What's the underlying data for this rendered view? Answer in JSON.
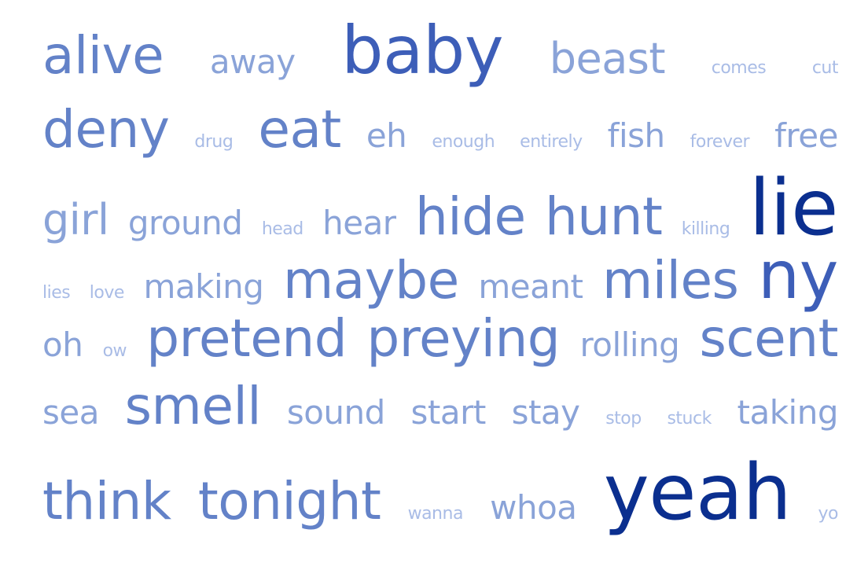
{
  "colors": {
    "darkest": "#0b2f8f",
    "dark": "#3d5eb8",
    "mid": "#6382c8",
    "light": "#8aa3d8",
    "lightest": "#a9bce6"
  },
  "rows": [
    [
      {
        "text": "alive",
        "weight": 5,
        "tone": "mid"
      },
      {
        "text": "away",
        "weight": 3,
        "tone": "light"
      },
      {
        "text": "baby",
        "weight": 6,
        "tone": "dark"
      },
      {
        "text": "beast",
        "weight": 4,
        "tone": "light"
      },
      {
        "text": "comes",
        "weight": 1,
        "tone": "lightest"
      },
      {
        "text": "cut",
        "weight": 1,
        "tone": "lightest"
      }
    ],
    [
      {
        "text": "deny",
        "weight": 5,
        "tone": "mid"
      },
      {
        "text": "drug",
        "weight": 1,
        "tone": "lightest"
      },
      {
        "text": "eat",
        "weight": 5,
        "tone": "mid"
      },
      {
        "text": "eh",
        "weight": 3,
        "tone": "light"
      },
      {
        "text": "enough",
        "weight": 1,
        "tone": "lightest"
      },
      {
        "text": "entirely",
        "weight": 1,
        "tone": "lightest"
      },
      {
        "text": "fish",
        "weight": 3,
        "tone": "light"
      },
      {
        "text": "forever",
        "weight": 1,
        "tone": "lightest"
      },
      {
        "text": "free",
        "weight": 3,
        "tone": "light"
      }
    ],
    [
      {
        "text": "girl",
        "weight": 4,
        "tone": "light"
      },
      {
        "text": "ground",
        "weight": 3,
        "tone": "light"
      },
      {
        "text": "head",
        "weight": 1,
        "tone": "lightest"
      },
      {
        "text": "hear",
        "weight": 3,
        "tone": "light"
      },
      {
        "text": "hide",
        "weight": 5,
        "tone": "mid"
      },
      {
        "text": "hunt",
        "weight": 5,
        "tone": "mid"
      },
      {
        "text": "killing",
        "weight": 1,
        "tone": "lightest"
      },
      {
        "text": "lie",
        "weight": 7,
        "tone": "darkest"
      }
    ],
    [
      {
        "text": "lies",
        "weight": 1,
        "tone": "lightest"
      },
      {
        "text": "love",
        "weight": 1,
        "tone": "lightest"
      },
      {
        "text": "making",
        "weight": 3,
        "tone": "light"
      },
      {
        "text": "maybe",
        "weight": 5,
        "tone": "mid"
      },
      {
        "text": "meant",
        "weight": 3,
        "tone": "light"
      },
      {
        "text": "miles",
        "weight": 5,
        "tone": "mid"
      },
      {
        "text": "ny",
        "weight": 6,
        "tone": "dark"
      }
    ],
    [
      {
        "text": "oh",
        "weight": 3,
        "tone": "light"
      },
      {
        "text": "ow",
        "weight": 1,
        "tone": "lightest"
      },
      {
        "text": "pretend",
        "weight": 5,
        "tone": "mid"
      },
      {
        "text": "preying",
        "weight": 5,
        "tone": "mid"
      },
      {
        "text": "rolling",
        "weight": 3,
        "tone": "light"
      },
      {
        "text": "scent",
        "weight": 5,
        "tone": "mid"
      }
    ],
    [
      {
        "text": "sea",
        "weight": 3,
        "tone": "light"
      },
      {
        "text": "smell",
        "weight": 5,
        "tone": "mid"
      },
      {
        "text": "sound",
        "weight": 3,
        "tone": "light"
      },
      {
        "text": "start",
        "weight": 3,
        "tone": "light"
      },
      {
        "text": "stay",
        "weight": 3,
        "tone": "light"
      },
      {
        "text": "stop",
        "weight": 1,
        "tone": "lightest"
      },
      {
        "text": "stuck",
        "weight": 1,
        "tone": "lightest"
      },
      {
        "text": "taking",
        "weight": 3,
        "tone": "light"
      }
    ],
    [
      {
        "text": "think",
        "weight": 5,
        "tone": "mid"
      },
      {
        "text": "tonight",
        "weight": 5,
        "tone": "mid"
      },
      {
        "text": "wanna",
        "weight": 1,
        "tone": "lightest"
      },
      {
        "text": "whoa",
        "weight": 3,
        "tone": "light"
      },
      {
        "text": "yeah",
        "weight": 7,
        "tone": "darkest"
      },
      {
        "text": "yo",
        "weight": 1,
        "tone": "lightest"
      }
    ]
  ]
}
